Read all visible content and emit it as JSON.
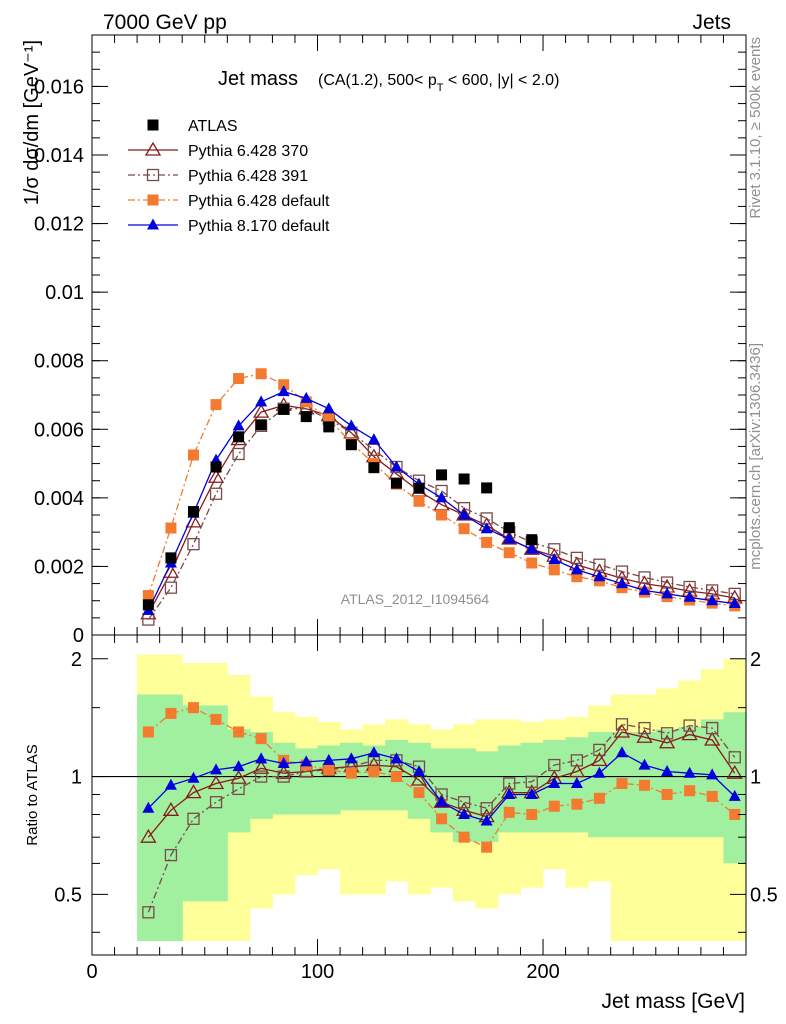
{
  "header": {
    "left": "7000 GeV pp",
    "right": "Jets"
  },
  "side_labels": {
    "rivet": "Rivet 3.1.10, ≥ 500k events",
    "mcplots": "mcplots.cern.ch [arXiv:1306.3436]"
  },
  "watermark": "ATLAS_2012_I1094564",
  "chart_data": [
    {
      "type": "scatter",
      "title_main": "Jet mass",
      "title_detail": "(CA(1.2), 500< pₜ < 600, |y| < 2.0)",
      "title_detail_parts": [
        "(CA(1.2), 500< p",
        "T",
        " < 600, |y| < 2.0)"
      ],
      "ylabel": "1/σ dσ/dm [GeV⁻¹]",
      "xlim": [
        0,
        290
      ],
      "ylim": [
        0,
        0.0175
      ],
      "y_ticks": [
        "0",
        "0.002",
        "0.004",
        "0.006",
        "0.008",
        "0.01",
        "0.012",
        "0.014",
        "0.016"
      ],
      "y_tick_values": [
        0,
        0.002,
        0.004,
        0.006,
        0.008,
        0.01,
        0.012,
        0.014,
        0.016
      ],
      "legend_position": "top-left",
      "x": [
        25,
        35,
        45,
        55,
        65,
        75,
        85,
        95,
        105,
        115,
        125,
        135,
        145,
        155,
        165,
        175,
        185,
        195,
        205,
        215,
        225,
        235,
        245,
        255,
        265,
        275,
        285
      ],
      "series": [
        {
          "name": "ATLAS",
          "color": "#000000",
          "marker": "filled-square",
          "values": [
            0.00088,
            0.00225,
            0.0036,
            0.0049,
            0.00578,
            0.00613,
            0.00658,
            0.00637,
            0.00607,
            0.00555,
            0.00488,
            0.00443,
            0.00428,
            0.00467,
            0.00455,
            0.00429,
            0.00313,
            0.00278,
            null,
            null,
            null,
            null,
            null,
            null,
            null,
            null,
            null
          ]
        },
        {
          "name": "Pythia 6.428 370",
          "color": "#8b1a1a",
          "marker": "open-triangle",
          "line": "solid",
          "values": [
            0.00062,
            0.00183,
            0.0033,
            0.0046,
            0.0057,
            0.0065,
            0.0067,
            0.0066,
            0.0064,
            0.0059,
            0.0052,
            0.0047,
            0.0042,
            0.0038,
            0.0035,
            0.0032,
            0.0028,
            0.0025,
            0.0023,
            0.00205,
            0.00185,
            0.00165,
            0.0015,
            0.0014,
            0.00128,
            0.0012,
            0.00108
          ]
        },
        {
          "name": "Pythia 6.428 391",
          "color": "#7a4a4a",
          "marker": "open-square",
          "line": "dash-dot",
          "values": [
            0.00045,
            0.00138,
            0.00265,
            0.00412,
            0.00528,
            0.0061,
            0.0066,
            0.0066,
            0.0063,
            0.0059,
            0.0054,
            0.0049,
            0.0045,
            0.0042,
            0.0037,
            0.0034,
            0.003,
            0.0027,
            0.0025,
            0.00225,
            0.00205,
            0.00185,
            0.00168,
            0.00153,
            0.0014,
            0.0013,
            0.0012
          ]
        },
        {
          "name": "Pythia 6.428 default",
          "color": "#f47a30",
          "marker": "filled-square",
          "line": "dash-dot",
          "values": [
            0.00115,
            0.00312,
            0.00525,
            0.00672,
            0.00748,
            0.00762,
            0.0073,
            0.0068,
            0.0063,
            0.0056,
            0.005,
            0.0044,
            0.0039,
            0.0035,
            0.0031,
            0.0027,
            0.0024,
            0.0021,
            0.0019,
            0.0017,
            0.00158,
            0.00138,
            0.00125,
            0.00112,
            0.00102,
            0.00093,
            0.00085
          ]
        },
        {
          "name": "Pythia 8.170 default",
          "color": "#0000dd",
          "marker": "filled-triangle",
          "line": "solid",
          "values": [
            0.00072,
            0.0021,
            0.00355,
            0.0051,
            0.0061,
            0.0068,
            0.0071,
            0.0069,
            0.0066,
            0.0061,
            0.0057,
            0.0049,
            0.0044,
            0.004,
            0.0035,
            0.0031,
            0.0028,
            0.0025,
            0.0022,
            0.0019,
            0.0017,
            0.0015,
            0.0013,
            0.0012,
            0.0011,
            0.001,
            0.00092
          ]
        }
      ]
    },
    {
      "type": "scatter",
      "ylabel": "Ratio to ATLAS",
      "xlabel": "Jet mass [GeV]",
      "xlim": [
        0,
        290
      ],
      "x_ticks": [
        "0",
        "100",
        "200"
      ],
      "x_tick_values": [
        0,
        100,
        200
      ],
      "ylim": [
        0.35,
        2.3
      ],
      "y_ticks": [
        "0.5",
        "1",
        "2"
      ],
      "y_tick_values": [
        0.5,
        1,
        2
      ],
      "y_scale": "log",
      "reference_line": 1,
      "bands": {
        "x_edges": [
          20,
          40,
          60,
          70,
          80,
          90,
          100,
          110,
          120,
          130,
          140,
          150,
          160,
          170,
          180,
          190,
          200,
          210,
          220,
          230,
          240,
          250,
          260,
          270,
          280,
          290
        ],
        "inner": {
          "color": "#a0f0a0",
          "low": [
            0.38,
            0.48,
            0.72,
            0.78,
            0.8,
            0.8,
            0.8,
            0.82,
            0.82,
            0.82,
            0.78,
            0.72,
            0.68,
            0.68,
            0.72,
            0.72,
            0.72,
            0.72,
            0.7,
            0.7,
            0.7,
            0.7,
            0.7,
            0.7,
            0.6
          ],
          "high": [
            1.62,
            1.52,
            1.32,
            1.3,
            1.22,
            1.18,
            1.2,
            1.22,
            1.2,
            1.24,
            1.22,
            1.18,
            1.18,
            1.16,
            1.2,
            1.22,
            1.24,
            1.26,
            1.3,
            1.3,
            1.3,
            1.32,
            1.34,
            1.4,
            1.46
          ]
        },
        "outer": {
          "color": "#ffff99",
          "low": [
            0.38,
            0.38,
            0.38,
            0.46,
            0.5,
            0.56,
            0.58,
            0.5,
            0.5,
            0.54,
            0.5,
            0.52,
            0.48,
            0.46,
            0.5,
            0.52,
            0.58,
            0.52,
            0.54,
            0.38,
            0.38,
            0.38,
            0.38,
            0.38,
            0.38
          ],
          "high": [
            2.05,
            1.95,
            1.82,
            1.6,
            1.46,
            1.42,
            1.38,
            1.32,
            1.36,
            1.4,
            1.36,
            1.32,
            1.36,
            1.4,
            1.4,
            1.38,
            1.4,
            1.42,
            1.52,
            1.62,
            1.62,
            1.68,
            1.76,
            1.88,
            2.0
          ]
        }
      },
      "series": [
        {
          "name": "Pythia 6.428 370",
          "color": "#8b1a1a",
          "marker": "open-triangle",
          "line": "solid",
          "values": [
            0.7,
            0.82,
            0.91,
            0.96,
            0.99,
            1.05,
            1.02,
            1.03,
            1.05,
            1.06,
            1.07,
            1.06,
            0.98,
            0.86,
            0.82,
            0.79,
            0.91,
            0.91,
            0.99,
            1.03,
            1.1,
            1.3,
            1.26,
            1.22,
            1.28,
            1.24,
            1.02
          ]
        },
        {
          "name": "Pythia 6.428 391",
          "color": "#7a4a4a",
          "marker": "open-square",
          "line": "dash-dot",
          "values": [
            0.45,
            0.63,
            0.78,
            0.86,
            0.93,
            1.0,
            1.0,
            1.03,
            1.04,
            1.06,
            1.1,
            1.1,
            1.06,
            0.9,
            0.86,
            0.83,
            0.96,
            0.97,
            1.07,
            1.1,
            1.17,
            1.36,
            1.33,
            1.29,
            1.35,
            1.33,
            1.12
          ]
        },
        {
          "name": "Pythia 6.428 default",
          "color": "#f47a30",
          "marker": "filled-square",
          "line": "dash-dot",
          "values": [
            1.3,
            1.45,
            1.5,
            1.4,
            1.3,
            1.25,
            1.1,
            1.07,
            1.04,
            1.02,
            1.03,
            1.0,
            0.91,
            0.78,
            0.7,
            0.66,
            0.81,
            0.8,
            0.84,
            0.85,
            0.88,
            0.96,
            0.95,
            0.9,
            0.92,
            0.89,
            0.8
          ]
        },
        {
          "name": "Pythia 8.170 default",
          "color": "#0000dd",
          "marker": "filled-triangle",
          "line": "solid",
          "values": [
            0.83,
            0.95,
            0.99,
            1.04,
            1.06,
            1.11,
            1.08,
            1.09,
            1.1,
            1.11,
            1.15,
            1.11,
            1.03,
            0.86,
            0.8,
            0.77,
            0.9,
            0.9,
            0.96,
            0.96,
            1.02,
            1.15,
            1.07,
            1.03,
            1.02,
            1.01,
            0.89
          ]
        }
      ]
    }
  ]
}
